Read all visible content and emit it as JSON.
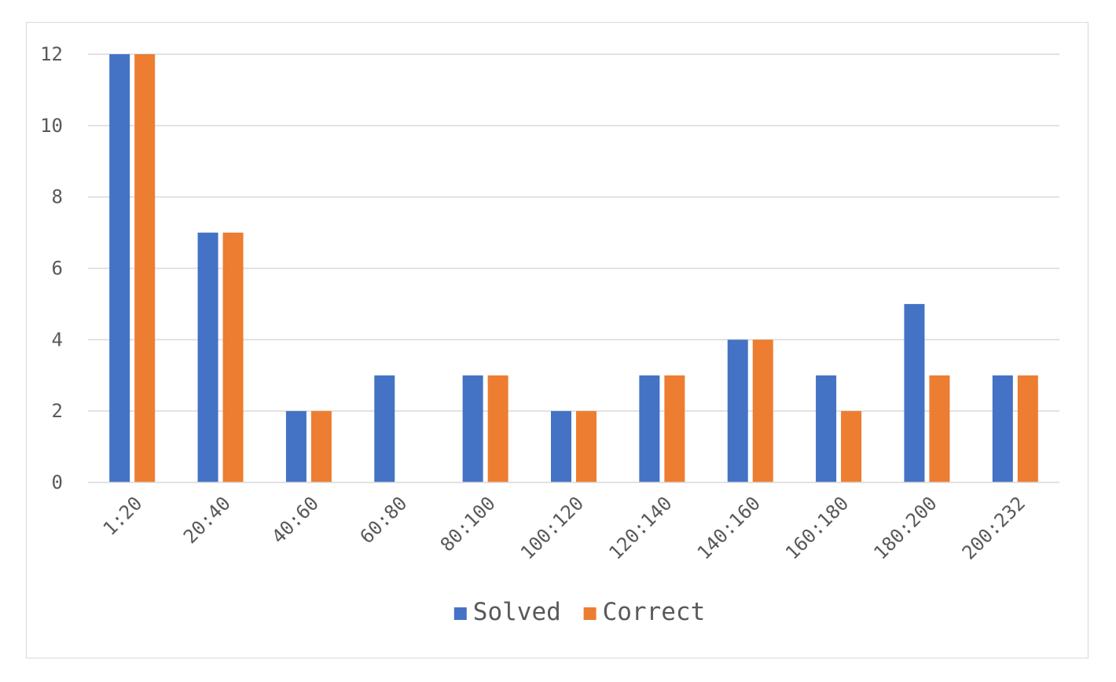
{
  "chart_data": {
    "type": "bar",
    "title": "",
    "xlabel": "",
    "ylabel": "",
    "categories": [
      "1:20",
      "20:40",
      "40:60",
      "60:80",
      "80:100",
      "100:120",
      "120:140",
      "140:160",
      "160:180",
      "180:200",
      "200:232"
    ],
    "series": [
      {
        "name": "Solved",
        "color": "#4472c4",
        "values": [
          12,
          7,
          2,
          3,
          3,
          2,
          3,
          4,
          3,
          5,
          3
        ]
      },
      {
        "name": "Correct",
        "color": "#ed7d31",
        "values": [
          12,
          7,
          2,
          0,
          3,
          2,
          3,
          4,
          2,
          3,
          3
        ]
      }
    ],
    "ylim": [
      0,
      12
    ],
    "yticks": [
      0,
      2,
      4,
      6,
      8,
      10,
      12
    ],
    "grid": true,
    "legend_position": "bottom",
    "x_tick_rotation": -45
  }
}
